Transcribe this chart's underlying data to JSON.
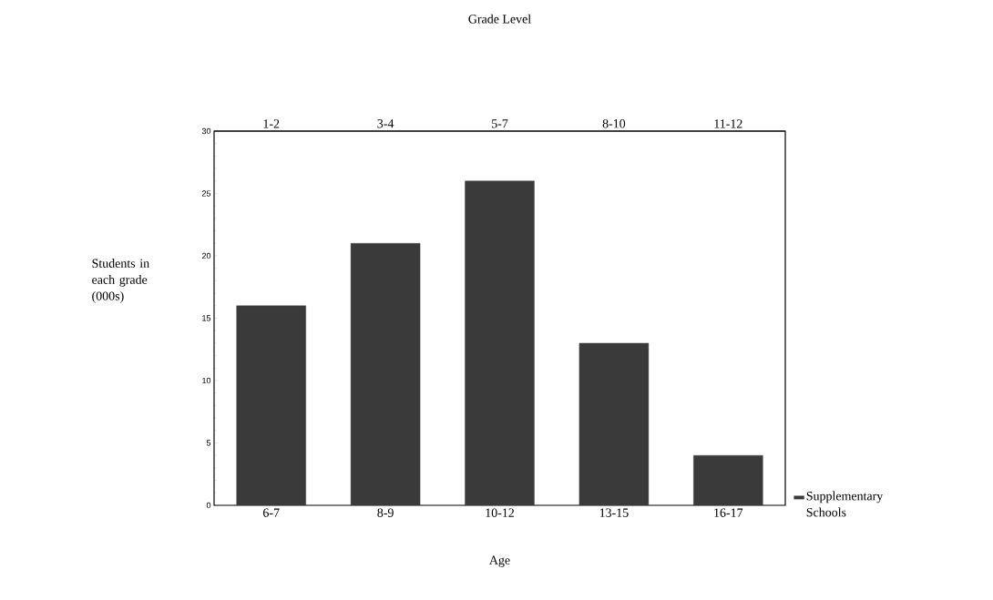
{
  "chart_data": {
    "type": "bar",
    "categories": [
      "6-7",
      "8-9",
      "10-12",
      "13-15",
      "16-17"
    ],
    "series": [
      {
        "name": "Supplementary Schools",
        "color": "#3a3a3a",
        "values": [
          16,
          21,
          26,
          13,
          4
        ]
      }
    ],
    "xlabel": "Age",
    "ylabel": "Students in each grade (000s)",
    "x2label": "Grade Level",
    "ylim": [
      0,
      30
    ],
    "yticks": [
      0,
      5,
      10,
      15,
      20,
      25,
      30
    ],
    "annotations": [
      "1-2",
      "3-4",
      "5-7",
      "8-10",
      "11-12"
    ],
    "legend": "bottom right"
  }
}
